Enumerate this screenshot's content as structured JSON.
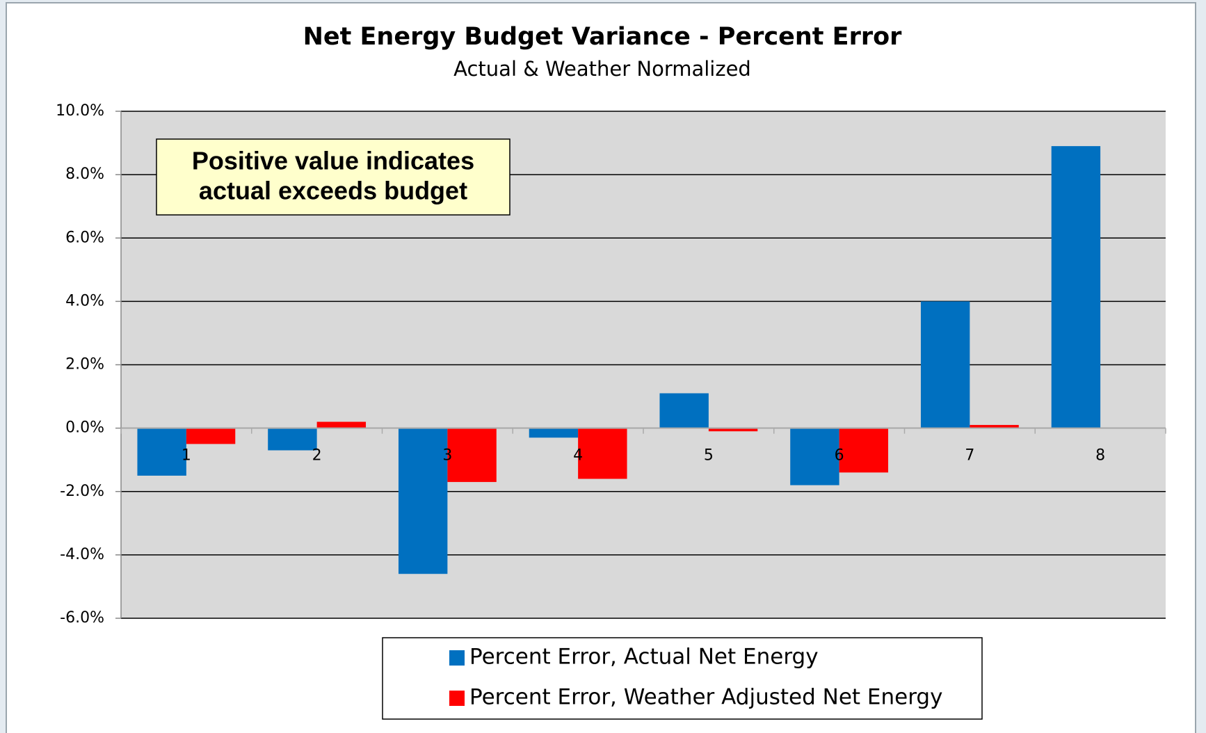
{
  "chart_data": {
    "type": "bar",
    "title": "Net Energy Budget Variance - Percent Error",
    "subtitle": "Actual & Weather Normalized",
    "annotation": [
      "Positive value indicates",
      "actual exceeds budget"
    ],
    "categories": [
      "1",
      "2",
      "3",
      "4",
      "5",
      "6",
      "7",
      "8"
    ],
    "series": [
      {
        "name": "Percent Error, Actual Net Energy",
        "color": "#0070c0",
        "values": [
          -1.5,
          -0.7,
          -4.6,
          -0.3,
          1.1,
          -1.8,
          4.0,
          8.9
        ]
      },
      {
        "name": "Percent Error, Weather Adjusted Net Energy",
        "color": "#ff0000",
        "values": [
          -0.5,
          0.2,
          -1.7,
          -1.6,
          -0.1,
          -1.4,
          0.1,
          null
        ]
      }
    ],
    "ylim": [
      -6,
      10
    ],
    "yticks": [
      {
        "value": -6,
        "label": "-6.0%"
      },
      {
        "value": -4,
        "label": "-4.0%"
      },
      {
        "value": -2,
        "label": "-2.0%"
      },
      {
        "value": 0,
        "label": "0.0%"
      },
      {
        "value": 2,
        "label": "2.0%"
      },
      {
        "value": 4,
        "label": "4.0%"
      },
      {
        "value": 6,
        "label": "6.0%"
      },
      {
        "value": 8,
        "label": "8.0%"
      },
      {
        "value": 10,
        "label": "10.0%"
      }
    ],
    "grid": true
  }
}
